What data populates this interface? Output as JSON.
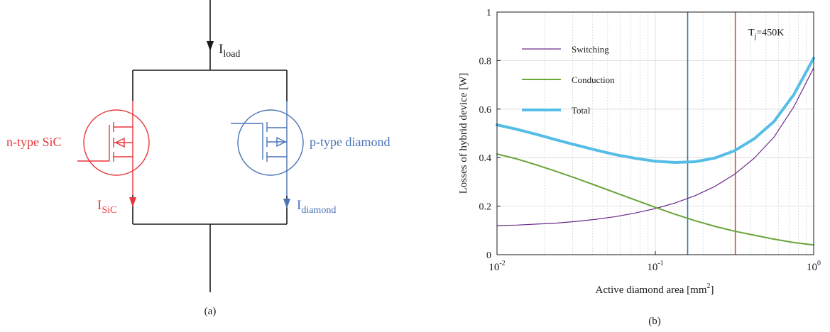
{
  "circuit": {
    "caption": "(a)",
    "current_load_main": "I",
    "current_load_sub": "load",
    "current_sic_main": "I",
    "current_sic_sub": "SiC",
    "current_diamond_main": "I",
    "current_diamond_sub": "diamond",
    "sic_label": "n-type SiC",
    "diamond_label": "p-type diamond",
    "colors": {
      "wire": "#1a1a1a",
      "sic": "#e8373c",
      "diamond": "#4a73b8"
    }
  },
  "chart_data": {
    "type": "line",
    "caption": "(b)",
    "xlabel_main": "Active diamond area [mm",
    "xlabel_sup": "2",
    "xlabel_end": "]",
    "ylabel": "Losses of hybrid device [W]",
    "xscale": "log",
    "xlim": [
      0.01,
      1
    ],
    "ylim": [
      0,
      1
    ],
    "xticks": [
      {
        "value": 0.01,
        "base": "10",
        "exp": "-2"
      },
      {
        "value": 0.1,
        "base": "10",
        "exp": "-1"
      },
      {
        "value": 1,
        "base": "10",
        "exp": "0"
      }
    ],
    "yticks": [
      {
        "value": 0,
        "label": "0"
      },
      {
        "value": 0.2,
        "label": "0.2"
      },
      {
        "value": 0.4,
        "label": "0.4"
      },
      {
        "value": 0.6,
        "label": "0.6"
      },
      {
        "value": 0.8,
        "label": "0.8"
      },
      {
        "value": 1,
        "label": "1"
      }
    ],
    "grid": true,
    "legend_position": "top-left",
    "annotation": {
      "main": "T",
      "sub": "j",
      "rest": "=450K"
    },
    "x": [
      0.01,
      0.0133,
      0.0178,
      0.0237,
      0.0316,
      0.0422,
      0.0562,
      0.075,
      0.1,
      0.133,
      0.178,
      0.237,
      0.316,
      0.422,
      0.562,
      0.75,
      1.0
    ],
    "series": [
      {
        "name": "Switching",
        "color": "#6a2a8a",
        "width": 1.2,
        "values": [
          0.12,
          0.122,
          0.126,
          0.13,
          0.137,
          0.146,
          0.157,
          0.172,
          0.19,
          0.213,
          0.243,
          0.281,
          0.331,
          0.398,
          0.485,
          0.61,
          0.77
        ]
      },
      {
        "name": "Conduction",
        "color": "#6aa43a",
        "width": 2,
        "values": [
          0.415,
          0.395,
          0.37,
          0.343,
          0.315,
          0.285,
          0.255,
          0.225,
          0.195,
          0.167,
          0.14,
          0.117,
          0.097,
          0.08,
          0.064,
          0.05,
          0.04
        ]
      },
      {
        "name": "Total",
        "color": "#55bde6",
        "width": 4,
        "values": [
          0.535,
          0.517,
          0.496,
          0.473,
          0.452,
          0.431,
          0.412,
          0.397,
          0.385,
          0.38,
          0.383,
          0.398,
          0.428,
          0.478,
          0.549,
          0.66,
          0.81
        ]
      }
    ],
    "vlines": [
      {
        "x": 0.16,
        "color": "#2a7ab0"
      },
      {
        "x": 0.32,
        "color": "#d5502a"
      }
    ]
  }
}
